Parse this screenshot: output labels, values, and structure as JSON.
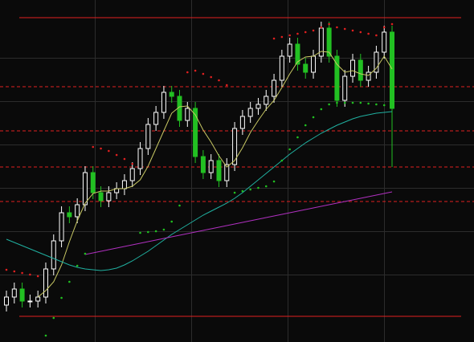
{
  "chart_data": {
    "type": "candlestick",
    "ylim": [
      0,
      426
    ],
    "up_color": "#ffffff",
    "down_color": "#22c022",
    "open": [
      46,
      56,
      66,
      51,
      51,
      56,
      91,
      126,
      161,
      156,
      171,
      211,
      186,
      176,
      186,
      191,
      201,
      216,
      241,
      271,
      286,
      311,
      306,
      276,
      291,
      231,
      211,
      226,
      201,
      221,
      266,
      281,
      291,
      296,
      306,
      326,
      356,
      371,
      346,
      336,
      356,
      391,
      356,
      301,
      331,
      351,
      326,
      336,
      361,
      386
    ],
    "high": [
      64,
      74,
      74,
      59,
      64,
      99,
      134,
      169,
      169,
      179,
      219,
      219,
      194,
      194,
      199,
      209,
      224,
      249,
      279,
      294,
      319,
      319,
      314,
      299,
      299,
      239,
      234,
      234,
      229,
      274,
      289,
      299,
      304,
      314,
      334,
      364,
      379,
      379,
      354,
      364,
      399,
      399,
      364,
      339,
      359,
      359,
      344,
      369,
      394,
      394
    ],
    "low": [
      38,
      48,
      43,
      43,
      43,
      48,
      83,
      118,
      148,
      148,
      163,
      178,
      168,
      168,
      178,
      183,
      193,
      208,
      233,
      263,
      278,
      298,
      268,
      268,
      223,
      203,
      203,
      193,
      193,
      213,
      258,
      273,
      283,
      288,
      298,
      318,
      348,
      338,
      328,
      328,
      348,
      348,
      293,
      293,
      323,
      318,
      318,
      328,
      353,
      218
    ],
    "close": [
      56,
      66,
      51,
      51,
      56,
      91,
      126,
      161,
      156,
      171,
      211,
      186,
      176,
      186,
      191,
      201,
      216,
      241,
      271,
      286,
      311,
      306,
      276,
      291,
      231,
      211,
      226,
      201,
      221,
      266,
      281,
      291,
      296,
      306,
      326,
      356,
      371,
      346,
      336,
      356,
      391,
      356,
      301,
      331,
      351,
      326,
      336,
      361,
      386,
      291
    ],
    "lines": [
      {
        "color": "#c8c864",
        "values": [
          null,
          null,
          null,
          null,
          56,
          64,
          75,
          96,
          125,
          151,
          173,
          185,
          188,
          188,
          191,
          191,
          194,
          202,
          219,
          241,
          263,
          285,
          293,
          294,
          283,
          264,
          249,
          232,
          218,
          226,
          242,
          261,
          276,
          290,
          301,
          317,
          334,
          349,
          355,
          356,
          362,
          361,
          346,
          336,
          338,
          334,
          332,
          341,
          356,
          340
        ]
      },
      {
        "color": "#20b0a0",
        "values": [
          128,
          124,
          120,
          116,
          112,
          108,
          104,
          100,
          96,
          93,
          91,
          90,
          89,
          90,
          92,
          96,
          101,
          107,
          113,
          120,
          127,
          134,
          140,
          146,
          152,
          158,
          163,
          168,
          173,
          179,
          186,
          194,
          202,
          210,
          218,
          226,
          234,
          241,
          248,
          254,
          260,
          265,
          270,
          274,
          278,
          281,
          283,
          285,
          286,
          287
        ]
      },
      {
        "color": "#b030c0",
        "values": [
          null,
          null,
          null,
          null,
          null,
          null,
          null,
          null,
          null,
          null,
          109,
          111,
          113,
          115,
          117,
          119,
          121,
          123,
          125,
          127,
          129,
          131,
          133,
          135,
          137,
          139,
          141,
          143,
          145,
          147,
          149,
          151,
          153,
          155,
          157,
          159,
          161,
          163,
          165,
          167,
          169,
          171,
          173,
          175,
          177,
          179,
          181,
          183,
          185,
          187
        ]
      }
    ],
    "dots": [
      {
        "color": "#e02020",
        "values": [
          90,
          88,
          86,
          84,
          82,
          null,
          null,
          null,
          null,
          null,
          null,
          243,
          241,
          238,
          233,
          228,
          222,
          null,
          null,
          null,
          null,
          null,
          null,
          336,
          338,
          334,
          330,
          326,
          320,
          null,
          null,
          null,
          null,
          null,
          378,
          380,
          382,
          384,
          386,
          388,
          392,
          396,
          392,
          390,
          388,
          386,
          384,
          382,
          392,
          396
        ]
      },
      {
        "color": "#20c020",
        "values": [
          null,
          null,
          null,
          null,
          null,
          8,
          30,
          55,
          75,
          95,
          110,
          null,
          null,
          null,
          null,
          null,
          null,
          136,
          137,
          138,
          140,
          150,
          170,
          null,
          null,
          null,
          null,
          null,
          null,
          186,
          188,
          190,
          192,
          194,
          200,
          226,
          240,
          255,
          270,
          280,
          290,
          296,
          298,
          298,
          298,
          298,
          297,
          296,
          295,
          294
        ]
      }
    ],
    "levels": [
      {
        "value": 404,
        "color": "#e02020",
        "dashed": false
      },
      {
        "value": 318,
        "color": "#e02020",
        "dashed": true
      },
      {
        "value": 263,
        "color": "#e02020",
        "dashed": true
      },
      {
        "value": 218,
        "color": "#e02020",
        "dashed": true
      },
      {
        "value": 175,
        "color": "#e02020",
        "dashed": true
      },
      {
        "value": 32,
        "color": "#e02020",
        "dashed": false
      }
    ]
  }
}
